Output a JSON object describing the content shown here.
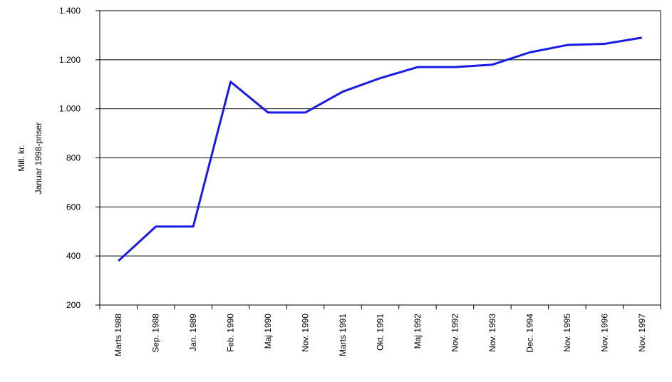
{
  "chart_data": {
    "type": "line",
    "ylabel": [
      "Mill. kr.",
      "Januar 1998-priser"
    ],
    "categories": [
      "Marts 1988",
      "Sep. 1988",
      "Jan. 1989",
      "Feb. 1990",
      "Maj 1990",
      "Nov. 1990",
      "Marts 1991",
      "Okt. 1991",
      "Maj 1992",
      "Nov. 1992",
      "Nov. 1993",
      "Dec. 1994",
      "Nov. 1995",
      "Nov. 1996",
      "Nov. 1997"
    ],
    "series": [
      {
        "color": "#1a1ae6",
        "values": [
          380,
          520,
          520,
          1110,
          985,
          985,
          1070,
          1125,
          1170,
          1170,
          1180,
          1230,
          1260,
          1265,
          1290
        ]
      }
    ],
    "ylim": [
      200,
      1400
    ],
    "yticks": [
      200,
      400,
      600,
      800,
      {
        "value": 1000,
        "label": "1.000"
      },
      {
        "value": 1200,
        "label": "1.200"
      },
      {
        "value": 1400,
        "label": "1.400"
      }
    ],
    "grid": true
  }
}
